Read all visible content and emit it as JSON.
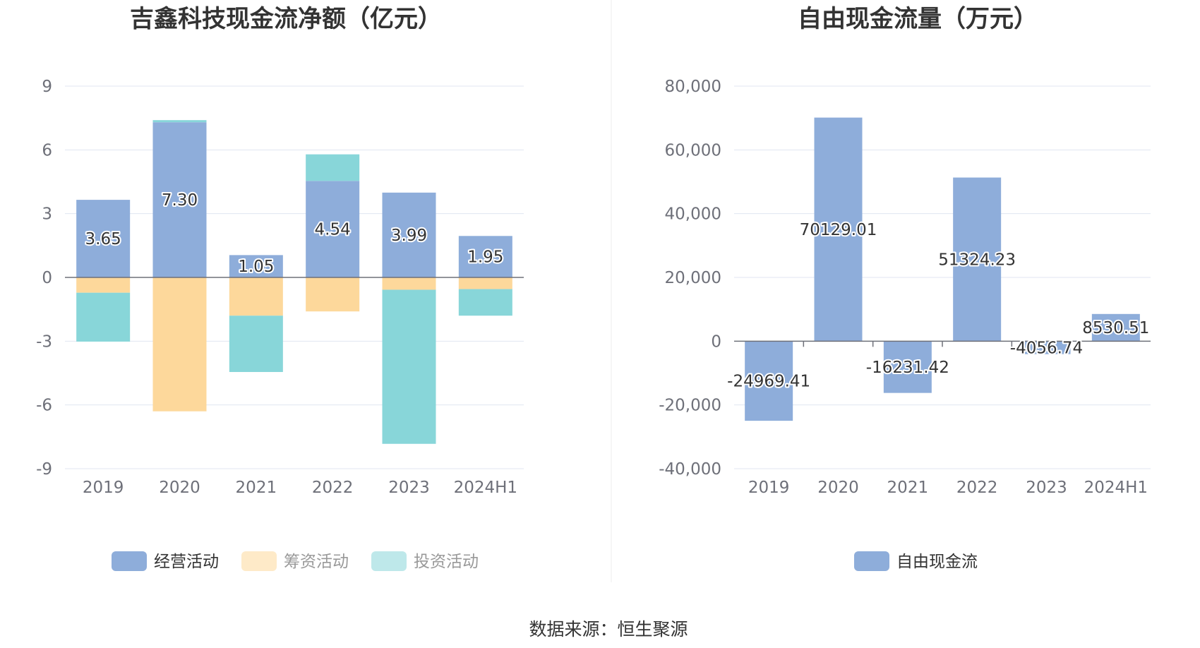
{
  "source_note": "数据来源：恒生聚源",
  "chart_data": [
    {
      "type": "bar",
      "stacked": true,
      "title": "吉鑫科技现金流净额（亿元）",
      "categories": [
        "2019",
        "2020",
        "2021",
        "2022",
        "2023",
        "2024H1"
      ],
      "ylim": [
        -9,
        9
      ],
      "yticks": [
        -9,
        -6,
        -3,
        0,
        3,
        6,
        9
      ],
      "grid": true,
      "legend_position": "bottom",
      "series": [
        {
          "name": "经营活动",
          "color": "#8eadda",
          "values": [
            3.65,
            7.3,
            1.05,
            4.54,
            3.99,
            1.95
          ],
          "labels": [
            "3.65",
            "7.30",
            "1.05",
            "4.54",
            "3.99",
            "1.95"
          ]
        },
        {
          "name": "筹资活动",
          "color": "#fdd89b",
          "values": [
            -0.72,
            -6.3,
            -1.8,
            -1.6,
            -0.58,
            -0.55
          ]
        },
        {
          "name": "投资活动",
          "color": "#88d6d9",
          "values": [
            -2.3,
            0.1,
            -2.65,
            1.25,
            -7.25,
            -1.25
          ]
        }
      ]
    },
    {
      "type": "bar",
      "title": "自由现金流量（万元）",
      "categories": [
        "2019",
        "2020",
        "2021",
        "2022",
        "2023",
        "2024H1"
      ],
      "ylim": [
        -40000,
        80000
      ],
      "yticks": [
        -40000,
        -20000,
        0,
        20000,
        40000,
        60000,
        80000
      ],
      "ytick_labels": [
        "-40,000",
        "-20,000",
        "0",
        "20,000",
        "40,000",
        "60,000",
        "80,000"
      ],
      "grid": true,
      "legend_position": "bottom",
      "series": [
        {
          "name": "自由现金流",
          "color": "#8eadda",
          "values": [
            -24969.41,
            70129.01,
            -16231.42,
            51324.23,
            -4056.74,
            8530.51
          ],
          "labels": [
            "-24969.41",
            "70129.01",
            "-16231.42",
            "51324.23",
            "-4056.74",
            "8530.51"
          ]
        }
      ]
    }
  ]
}
